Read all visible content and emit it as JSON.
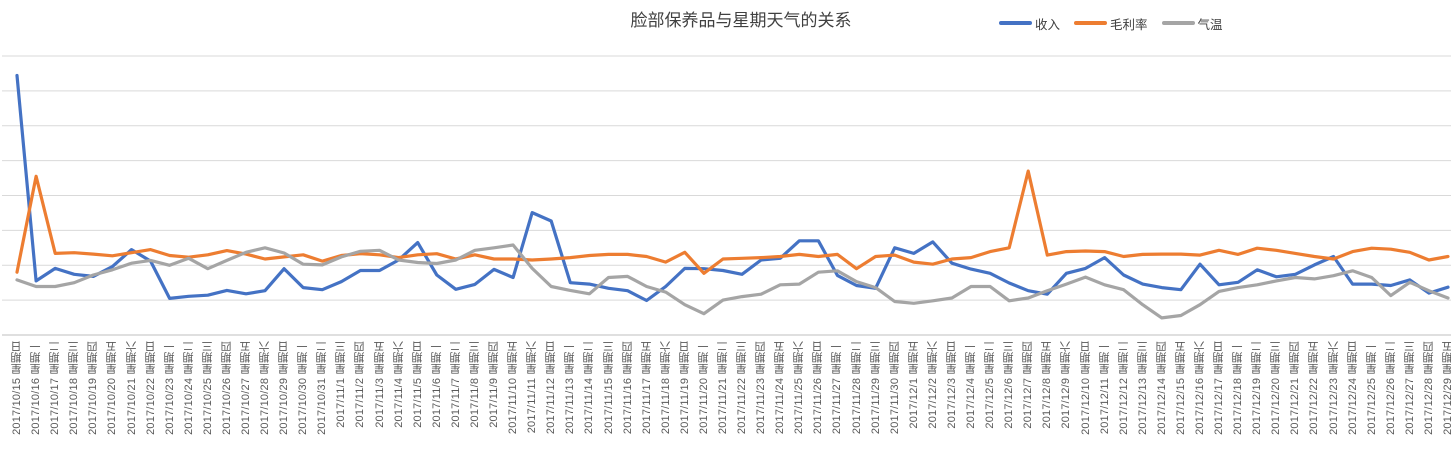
{
  "title": "脸部保养品与星期天气的关系",
  "legend": [
    {
      "id": "income",
      "label": "收入",
      "color": "#4472C4"
    },
    {
      "id": "gross-margin",
      "label": "毛利率",
      "color": "#ED7D31"
    },
    {
      "id": "temperature",
      "label": "气温",
      "color": "#A5A5A5"
    }
  ],
  "colors": {
    "gridline": "#D9D9D9",
    "axis_line": "#BFBFBF",
    "axis_label": "#595959",
    "title_text": "#404040"
  },
  "chart_data": {
    "type": "line",
    "title": "脸部保养品与星期天气的关系",
    "legend_position": "top-right",
    "grid": true,
    "grid_step": 100,
    "ylim": [
      0,
      800
    ],
    "ylabel": "",
    "xlabel": "",
    "y_axis_labels_visible": false,
    "x": [
      "2017/10/15 星期日",
      "2017/10/16 星期一",
      "2017/10/17 星期二",
      "2017/10/18 星期三",
      "2017/10/19 星期四",
      "2017/10/20 星期五",
      "2017/10/21 星期六",
      "2017/10/22 星期日",
      "2017/10/23 星期一",
      "2017/10/24 星期二",
      "2017/10/25 星期三",
      "2017/10/26 星期四",
      "2017/10/27 星期五",
      "2017/10/28 星期六",
      "2017/10/29 星期日",
      "2017/10/30 星期一",
      "2017/10/31 星期二",
      "2017/11/1 星期三",
      "2017/11/2 星期四",
      "2017/11/3 星期五",
      "2017/11/4 星期六",
      "2017/11/5 星期日",
      "2017/11/6 星期一",
      "2017/11/7 星期二",
      "2017/11/8 星期三",
      "2017/11/9 星期四",
      "2017/11/10 星期五",
      "2017/11/11 星期六",
      "2017/11/12 星期日",
      "2017/11/13 星期一",
      "2017/11/14 星期二",
      "2017/11/15 星期三",
      "2017/11/16 星期四",
      "2017/11/17 星期五",
      "2017/11/18 星期六",
      "2017/11/19 星期日",
      "2017/11/20 星期一",
      "2017/11/21 星期二",
      "2017/11/22 星期三",
      "2017/11/23 星期四",
      "2017/11/24 星期五",
      "2017/11/25 星期六",
      "2017/11/26 星期日",
      "2017/11/27 星期一",
      "2017/11/28 星期二",
      "2017/11/29 星期三",
      "2017/11/30 星期四",
      "2017/12/1 星期五",
      "2017/12/2 星期六",
      "2017/12/3 星期日",
      "2017/12/4 星期一",
      "2017/12/5 星期二",
      "2017/12/6 星期三",
      "2017/12/7 星期四",
      "2017/12/8 星期五",
      "2017/12/9 星期六",
      "2017/12/10 星期日",
      "2017/12/11 星期一",
      "2017/12/12 星期二",
      "2017/12/13 星期三",
      "2017/12/14 星期四",
      "2017/12/15 星期五",
      "2017/12/16 星期六",
      "2017/12/17 星期日",
      "2017/12/18 星期一",
      "2017/12/19 星期二",
      "2017/12/20 星期三",
      "2017/12/21 星期四",
      "2017/12/22 星期五",
      "2017/12/23 星期六",
      "2017/12/24 星期日",
      "2017/12/25 星期一",
      "2017/12/26 星期二",
      "2017/12/27 星期三",
      "2017/12/28 星期四",
      "2017/12/29 星期五"
    ],
    "series": [
      {
        "id": "income",
        "name": "收入",
        "color": "#4472C4",
        "values": [
          744,
          155,
          191,
          174,
          168,
          196,
          245,
          212,
          105,
          111,
          114,
          128,
          118,
          127,
          190,
          136,
          130,
          153,
          185,
          185,
          215,
          265,
          172,
          131,
          145,
          188,
          165,
          351,
          327,
          150,
          146,
          134,
          127,
          99,
          139,
          191,
          190,
          185,
          174,
          215,
          220,
          270,
          270,
          171,
          142,
          134,
          250,
          234,
          267,
          206,
          189,
          177,
          149,
          127,
          117,
          177,
          191,
          222,
          172,
          146,
          136,
          130,
          203,
          144,
          151,
          187,
          167,
          174,
          201,
          225,
          146,
          146,
          142,
          158,
          120,
          137
        ]
      },
      {
        "id": "gross-margin",
        "name": "毛利率",
        "color": "#ED7D31",
        "values": [
          180,
          455,
          234,
          236,
          232,
          227,
          236,
          245,
          228,
          223,
          230,
          242,
          232,
          218,
          224,
          230,
          212,
          228,
          233,
          230,
          222,
          230,
          233,
          218,
          230,
          218,
          218,
          215,
          218,
          222,
          228,
          231,
          231,
          225,
          209,
          237,
          177,
          218,
          220,
          222,
          225,
          231,
          225,
          231,
          190,
          225,
          229,
          209,
          203,
          218,
          222,
          239,
          250,
          470,
          229,
          239,
          241,
          239,
          225,
          231,
          232,
          232,
          229,
          243,
          231,
          249,
          243,
          234,
          225,
          218,
          239,
          249,
          246,
          237,
          215,
          225
        ]
      },
      {
        "id": "temperature",
        "name": "气温",
        "color": "#A5A5A5",
        "values": [
          158,
          139,
          139,
          150,
          172,
          187,
          206,
          214,
          200,
          220,
          190,
          214,
          237,
          250,
          235,
          203,
          201,
          224,
          240,
          243,
          215,
          208,
          205,
          215,
          243,
          250,
          258,
          191,
          139,
          128,
          118,
          165,
          168,
          139,
          123,
          87,
          61,
          100,
          110,
          117,
          144,
          146,
          180,
          184,
          153,
          136,
          96,
          91,
          98,
          106,
          139,
          139,
          98,
          106,
          127,
          146,
          166,
          144,
          130,
          87,
          49,
          56,
          87,
          125,
          136,
          144,
          155,
          165,
          161,
          170,
          184,
          165,
          113,
          151,
          127,
          106
        ]
      }
    ]
  }
}
